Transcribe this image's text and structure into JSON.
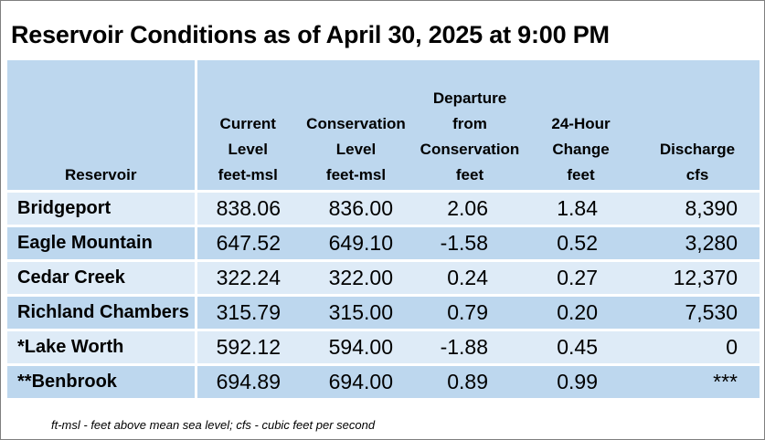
{
  "title": "Reservoir Conditions as of April 30, 2025 at 9:00 PM",
  "headers": [
    {
      "lines": [
        "Reservoir"
      ]
    },
    {
      "lines": [
        "Current",
        "Level",
        "feet-msl"
      ]
    },
    {
      "lines": [
        "Conservation",
        "Level",
        "feet-msl"
      ]
    },
    {
      "lines": [
        "Departure",
        "from",
        "Conservation",
        "feet"
      ]
    },
    {
      "lines": [
        "24-Hour",
        "Change",
        "feet"
      ]
    },
    {
      "lines": [
        "Discharge",
        "cfs"
      ]
    }
  ],
  "rows": [
    {
      "name": "Bridgeport",
      "current": "838.06",
      "conservation": "836.00",
      "departure": "2.06",
      "change": "1.84",
      "discharge": "8,390"
    },
    {
      "name": "Eagle Mountain",
      "current": "647.52",
      "conservation": "649.10",
      "departure": "-1.58",
      "change": "0.52",
      "discharge": "3,280"
    },
    {
      "name": "Cedar Creek",
      "current": "322.24",
      "conservation": "322.00",
      "departure": "0.24",
      "change": "0.27",
      "discharge": "12,370"
    },
    {
      "name": "Richland Chambers",
      "current": "315.79",
      "conservation": "315.00",
      "departure": "0.79",
      "change": "0.20",
      "discharge": "7,530"
    },
    {
      "name": "*Lake Worth",
      "current": "592.12",
      "conservation": "594.00",
      "departure": "-1.88",
      "change": "0.45",
      "discharge": "0"
    },
    {
      "name": "**Benbrook",
      "current": "694.89",
      "conservation": "694.00",
      "departure": "0.89",
      "change": "0.99",
      "discharge": "***"
    }
  ],
  "footnote": "ft-msl - feet above mean sea level; cfs - cubic feet per second",
  "colors": {
    "header_bg": "#bdd7ee",
    "row_light": "#deebf7",
    "row_dark": "#bdd7ee"
  }
}
